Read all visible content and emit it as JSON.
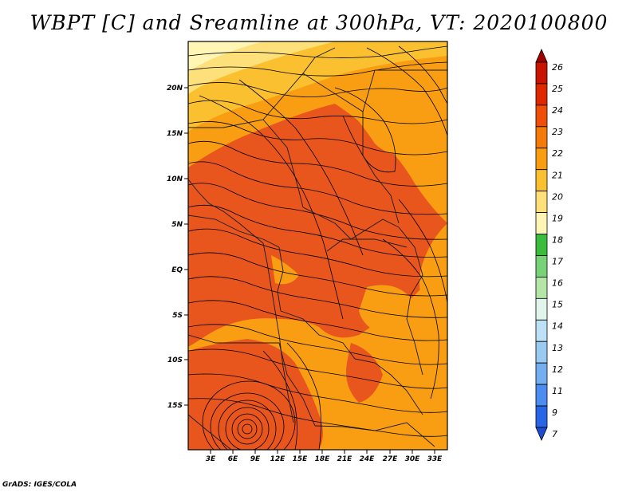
{
  "title": "WBPT [C] and Sreamline at 300hPa, VT: 2020100800",
  "credit": "GrADS: IGES/COLA",
  "map": {
    "lat_labels": [
      "20N",
      "15N",
      "10N",
      "5N",
      "EQ",
      "5S",
      "10S",
      "15S"
    ],
    "lon_labels": [
      "3E",
      "6E",
      "9E",
      "12E",
      "15E",
      "18E",
      "21E",
      "24E",
      "27E",
      "30E",
      "33E"
    ],
    "field_description": "Wet-bulb potential temperature shaded with streamlines over Africa"
  },
  "colorbar": {
    "levels": [
      "26",
      "25",
      "24",
      "23",
      "22",
      "21",
      "20",
      "19",
      "18",
      "17",
      "16",
      "15",
      "14",
      "13",
      "12",
      "11",
      "9",
      "7"
    ],
    "colors": [
      "#a00000",
      "#c81400",
      "#e02800",
      "#f04f0a",
      "#f57a0a",
      "#f99e12",
      "#fbc030",
      "#fde07a",
      "#fff5b4",
      "#3cbc3c",
      "#78d278",
      "#b4e6a8",
      "#e1f5ec",
      "#bde0f6",
      "#9acaf2",
      "#73aff0",
      "#4b8df0",
      "#2866e6",
      "#1e4bd0"
    ]
  },
  "colors": {
    "warm_orange": "#f57a0a",
    "red_orange": "#e8561e",
    "amber": "#f99e12",
    "pale_yellow": "#fbc040"
  }
}
